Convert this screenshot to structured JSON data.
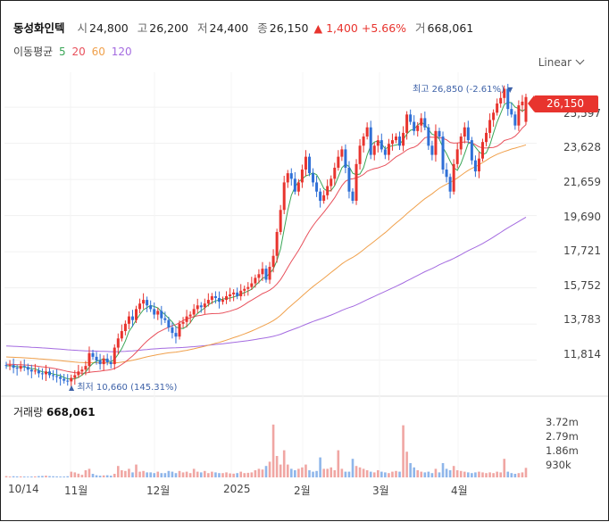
{
  "header": {
    "name": "동성화인텍",
    "open_label": "시",
    "open": "24,800",
    "high_label": "고",
    "high": "26,200",
    "low_label": "저",
    "low": "24,400",
    "close_label": "종",
    "close": "26,150",
    "change": "▲ 1,400",
    "change_pct": "+5.66%",
    "volume_label": "거",
    "volume": "668,061"
  },
  "ma_legend": {
    "label": "이동평균",
    "ma5": "5",
    "ma20": "20",
    "ma60": "60",
    "ma120": "120"
  },
  "scale_mode": "Linear",
  "current_price": "26,150",
  "annotations": {
    "high": "최고 26,850 (-2.61%)",
    "low": "최저 10,660 (145.31%)"
  },
  "volume_panel": {
    "label": "거래량",
    "value": "668,061"
  },
  "colors": {
    "up": "#e8342e",
    "down": "#2f6fd6",
    "ma5": "#3aa657",
    "ma20": "#e8505b",
    "ma60": "#f0a04b",
    "ma120": "#a46be0"
  },
  "chart_data": {
    "type": "candlestick",
    "x_labels": [
      "10/14",
      "11월",
      "12월",
      "2025",
      "2월",
      "3월",
      "4월"
    ],
    "y_ticks": [
      "25,597",
      "23,628",
      "21,659",
      "19,690",
      "17,721",
      "15,752",
      "13,783",
      "11,814"
    ],
    "y_range": [
      10000,
      27500
    ],
    "volume_ticks": [
      "3.72m",
      "2.79m",
      "1.86m",
      "930k"
    ],
    "volume_range": [
      0,
      4000000
    ],
    "closes": [
      11500,
      11550,
      11400,
      11350,
      11500,
      11450,
      11300,
      11200,
      11250,
      11100,
      11050,
      11200,
      11000,
      10950,
      10900,
      10800,
      10700,
      10660,
      10850,
      11000,
      11200,
      11300,
      11500,
      12200,
      12000,
      11800,
      11600,
      11900,
      11700,
      11600,
      12500,
      13000,
      13400,
      13800,
      14200,
      14000,
      14600,
      14900,
      15100,
      14800,
      14600,
      14300,
      14500,
      14100,
      14000,
      13600,
      13300,
      13100,
      13800,
      13900,
      14200,
      14300,
      14600,
      14800,
      14700,
      14900,
      15100,
      15300,
      15200,
      15000,
      15100,
      15300,
      15400,
      15500,
      15300,
      15600,
      15700,
      15800,
      16000,
      16300,
      16500,
      16800,
      16200,
      16900,
      17500,
      18800,
      20000,
      21500,
      22000,
      21700,
      21000,
      21500,
      22200,
      22900,
      22000,
      21500,
      21000,
      20500,
      20800,
      21300,
      21700,
      22300,
      22900,
      23300,
      22300,
      21000,
      20500,
      22500,
      23500,
      24000,
      24500,
      23000,
      23500,
      23800,
      23300,
      23000,
      23600,
      23800,
      24000,
      23500,
      24200,
      25200,
      24800,
      24300,
      24600,
      25000,
      24500,
      23500,
      23000,
      24300,
      24000,
      22200,
      21800,
      21000,
      22500,
      23300,
      24000,
      24500,
      23800,
      22700,
      22100,
      22800,
      23700,
      24200,
      24900,
      25300,
      25800,
      26100,
      26600,
      25500,
      25200,
      24600,
      25700,
      25900,
      26150
    ],
    "volumes": [
      90000,
      60000,
      80000,
      70000,
      70000,
      60000,
      50000,
      60000,
      70000,
      90000,
      100000,
      120000,
      90000,
      80000,
      70000,
      60000,
      60000,
      80000,
      400000,
      350000,
      260000,
      180000,
      500000,
      600000,
      250000,
      150000,
      120000,
      140000,
      150000,
      120000,
      250000,
      800000,
      500000,
      450000,
      600000,
      350000,
      900000,
      400000,
      450000,
      350000,
      350000,
      300000,
      400000,
      300000,
      300000,
      450000,
      400000,
      300000,
      450000,
      350000,
      400000,
      300000,
      600000,
      400000,
      350000,
      450000,
      300000,
      400000,
      350000,
      300000,
      300000,
      350000,
      280000,
      260000,
      300000,
      400000,
      300000,
      320000,
      350000,
      500000,
      600000,
      550000,
      800000,
      1100000,
      3700000,
      1500000,
      900000,
      1900000,
      900000,
      600000,
      500000,
      600000,
      700000,
      900000,
      500000,
      400000,
      450000,
      1400000,
      600000,
      600000,
      700000,
      500000,
      1900000,
      600000,
      400000,
      400000,
      1300000,
      800000,
      700000,
      600000,
      500000,
      400000,
      350000,
      500000,
      400000,
      350000,
      300000,
      400000,
      450000,
      400000,
      3650000,
      1800000,
      1000000,
      700000,
      500000,
      400000,
      350000,
      400000,
      300000,
      600000,
      350000,
      1000000,
      600000,
      500000,
      800000,
      500000,
      450000,
      400000,
      350000,
      300000,
      350000,
      400000,
      350000,
      300000,
      350000,
      300000,
      400000,
      350000,
      1300000,
      400000,
      300000,
      250000,
      300000,
      350000,
      668061
    ]
  }
}
